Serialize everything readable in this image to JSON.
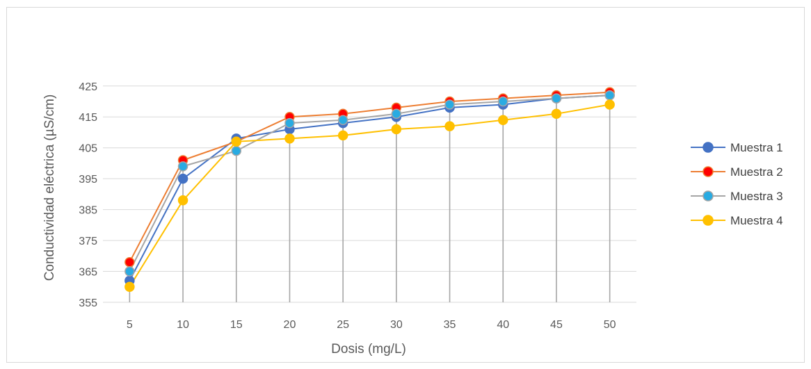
{
  "chart_data": {
    "type": "line",
    "title": "",
    "xlabel": "Dosis (mg/L)",
    "ylabel": "Conductividad eléctrica (µS/cm)",
    "categories": [
      "5",
      "10",
      "15",
      "20",
      "25",
      "30",
      "35",
      "40",
      "45",
      "50"
    ],
    "yticks": [
      "355",
      "365",
      "375",
      "385",
      "395",
      "405",
      "415",
      "425"
    ],
    "ylim": [
      355,
      429
    ],
    "grid": true,
    "drop_lines": true,
    "legend_position": "right",
    "series": [
      {
        "name": "Muestra 1",
        "color": "#4472c4",
        "marker_fill": "#4472c4",
        "values": [
          362,
          395,
          408,
          411,
          413,
          415,
          418,
          419,
          421,
          422
        ]
      },
      {
        "name": "Muestra 2",
        "color": "#ed7d31",
        "marker_fill": "#ff0000",
        "values": [
          368,
          401,
          407,
          415,
          416,
          418,
          420,
          421,
          422,
          423
        ]
      },
      {
        "name": "Muestra 3",
        "color": "#a5a5a5",
        "marker_fill": "#29abe2",
        "values": [
          365,
          399,
          404,
          413,
          414,
          416,
          419,
          420,
          421,
          422
        ]
      },
      {
        "name": "Muestra 4",
        "color": "#ffc000",
        "marker_fill": "#ffc000",
        "values": [
          360,
          388,
          407,
          408,
          409,
          411,
          412,
          414,
          416,
          419
        ]
      }
    ]
  }
}
